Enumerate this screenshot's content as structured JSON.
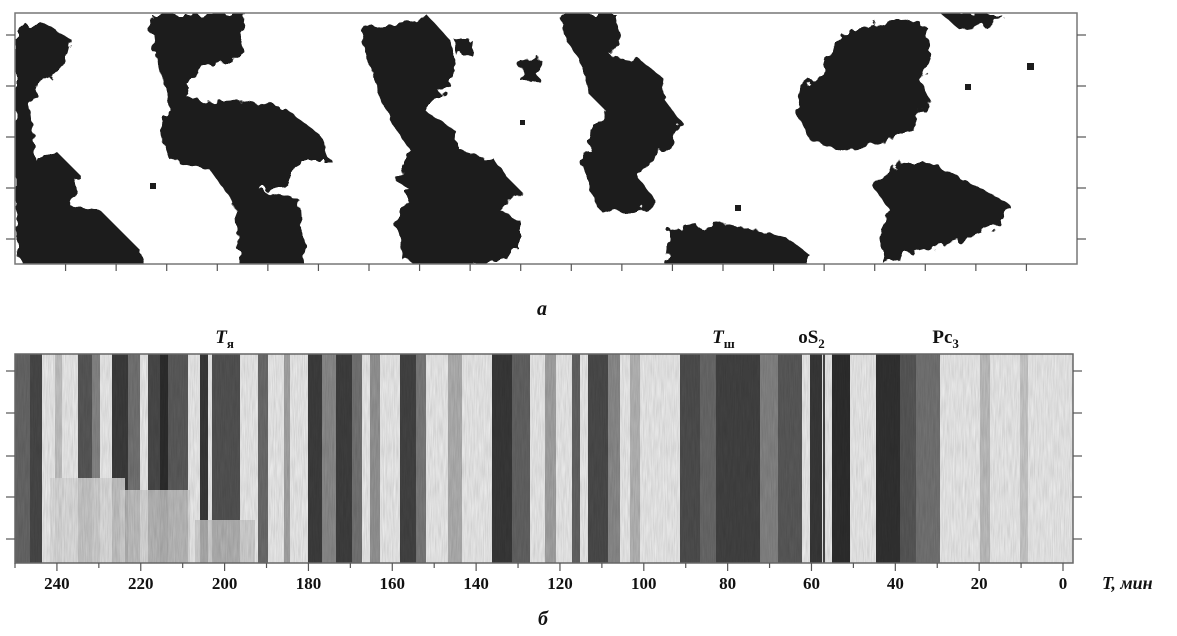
{
  "panel_a": {
    "caption": "а"
  },
  "panel_b": {
    "caption": "б",
    "axis": {
      "title": "T, мин",
      "min": 0,
      "max": 250,
      "reversed": true,
      "ticks": [
        "240",
        "220",
        "200",
        "180",
        "160",
        "140",
        "120",
        "100",
        "80",
        "60",
        "40",
        "20",
        "0"
      ]
    },
    "markers": [
      {
        "base": "T",
        "sub": "я",
        "italic": true,
        "at": 200
      },
      {
        "base": "T",
        "sub": "ш",
        "italic": true,
        "at": 81
      },
      {
        "base": "oS",
        "sub": "2",
        "italic": false,
        "at": 60
      },
      {
        "base": "Pc",
        "sub": "3",
        "italic": false,
        "at": 28
      }
    ]
  }
}
